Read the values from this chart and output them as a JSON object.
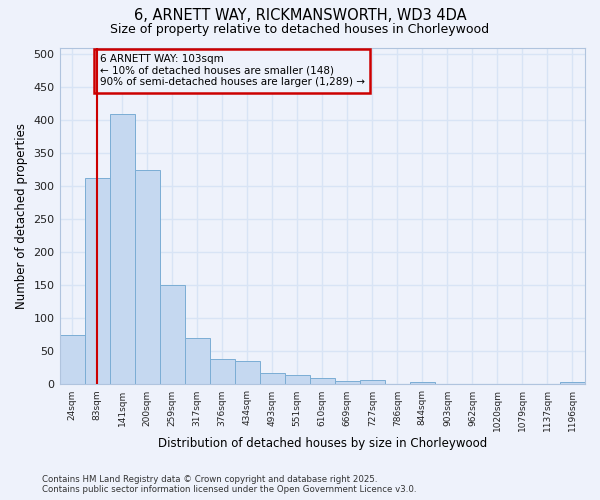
{
  "title1": "6, ARNETT WAY, RICKMANSWORTH, WD3 4DA",
  "title2": "Size of property relative to detached houses in Chorleywood",
  "xlabel": "Distribution of detached houses by size in Chorleywood",
  "ylabel": "Number of detached properties",
  "categories": [
    "24sqm",
    "83sqm",
    "141sqm",
    "200sqm",
    "259sqm",
    "317sqm",
    "376sqm",
    "434sqm",
    "493sqm",
    "551sqm",
    "610sqm",
    "669sqm",
    "727sqm",
    "786sqm",
    "844sqm",
    "903sqm",
    "962sqm",
    "1020sqm",
    "1079sqm",
    "1137sqm",
    "1196sqm"
  ],
  "values": [
    75,
    313,
    410,
    325,
    150,
    70,
    38,
    36,
    17,
    15,
    10,
    5,
    6,
    0,
    3,
    0,
    0,
    0,
    0,
    0,
    3
  ],
  "bar_color": "#c5d8f0",
  "bar_edge_color": "#7badd4",
  "vline_x": 1.5,
  "vline_color": "#cc0000",
  "annotation_text": "6 ARNETT WAY: 103sqm\n← 10% of detached houses are smaller (148)\n90% of semi-detached houses are larger (1,289) →",
  "annotation_box_color": "#cc0000",
  "background_color": "#eef2fb",
  "grid_color": "#d8e4f5",
  "ylim": [
    0,
    510
  ],
  "yticks": [
    0,
    50,
    100,
    150,
    200,
    250,
    300,
    350,
    400,
    450,
    500
  ],
  "footer": "Contains HM Land Registry data © Crown copyright and database right 2025.\nContains public sector information licensed under the Open Government Licence v3.0."
}
